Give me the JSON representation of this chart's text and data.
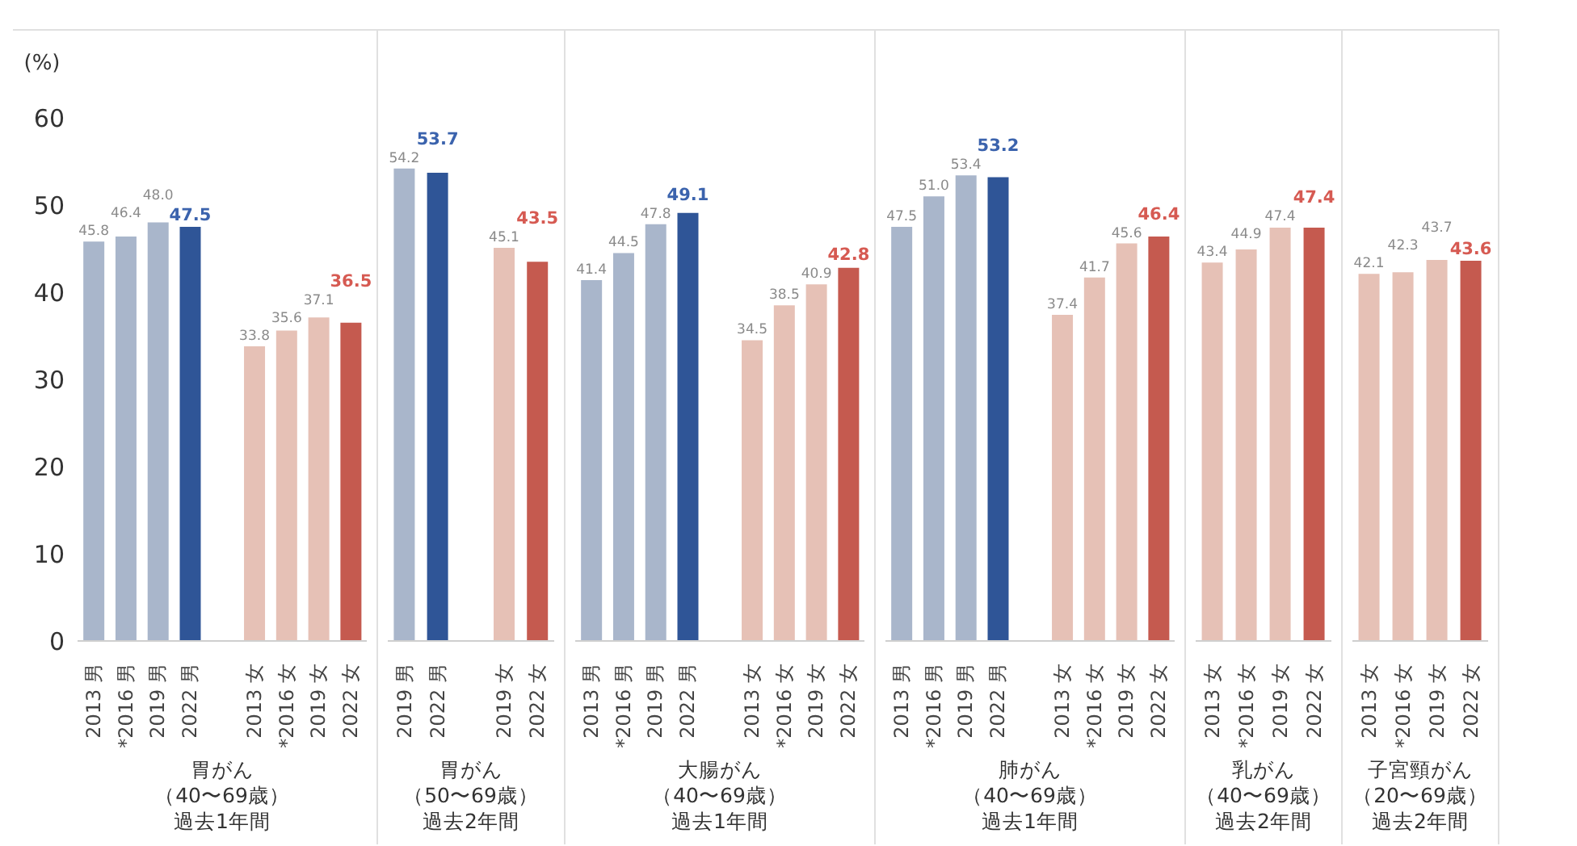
{
  "chart_data": [
    {
      "type": "bar",
      "ylabel": "(%)",
      "xlabel": "胃がん（40〜69歳）過去1年間",
      "categories": [
        "2013 男",
        "*2016 男",
        "2019 男",
        "2022 男",
        null,
        "2013 女",
        "*2016 女",
        "2019 女",
        "2022 女"
      ],
      "values": [
        45.8,
        46.4,
        48.0,
        47.5,
        null,
        33.8,
        35.6,
        37.1,
        36.5
      ],
      "value_labels": [
        "45.8",
        "46.4",
        "48.0",
        "47.5",
        null,
        "33.8",
        "35.6",
        "37.1",
        "36.5"
      ],
      "colors": [
        "#a9b6cb",
        "#a9b6cb",
        "#a9b6cb",
        "#2f5597",
        null,
        "#e6c1b6",
        "#e6c1b6",
        "#e6c1b6",
        "#c55a4f"
      ],
      "ylim": [
        0,
        70
      ],
      "yticks": [
        0,
        10,
        20,
        30,
        40,
        50,
        60
      ],
      "grid": false
    },
    {
      "type": "bar",
      "xlabel": "胃がん（50〜69歳）過去2年間",
      "categories": [
        "2019 男",
        "2022 男",
        null,
        "2019 女",
        "2022 女"
      ],
      "values": [
        54.2,
        53.7,
        null,
        45.1,
        43.5
      ],
      "value_labels": [
        "54.2",
        "53.7",
        null,
        "45.1",
        "43.5"
      ],
      "colors": [
        "#a9b6cb",
        "#2f5597",
        null,
        "#e6c1b6",
        "#c55a4f"
      ],
      "ylim": [
        0,
        70
      ],
      "tick_labels": "x",
      "grid": false
    },
    {
      "type": "bar",
      "xlabel": "大腸がん（40〜69歳）過去1年間",
      "categories": [
        "2013 男",
        "*2016 男",
        "2019 男",
        "2022 男",
        null,
        "2013 女",
        "*2016 女",
        "2019 女",
        "2022 女"
      ],
      "values": [
        41.4,
        44.5,
        47.8,
        49.1,
        null,
        34.5,
        38.5,
        40.9,
        42.8
      ],
      "value_labels": [
        "41.4",
        "44.5",
        "47.8",
        "49.1",
        null,
        "34.5",
        "38.5",
        "40.9",
        "42.8"
      ],
      "colors": [
        "#a9b6cb",
        "#a9b6cb",
        "#a9b6cb",
        "#2f5597",
        null,
        "#e6c1b6",
        "#e6c1b6",
        "#e6c1b6",
        "#c55a4f"
      ],
      "ylim": [
        0,
        70
      ],
      "tick_labels": "x",
      "grid": false
    },
    {
      "type": "bar",
      "xlabel": "肺がん（40〜69歳）過去1年間",
      "categories": [
        "2013 男",
        "*2016 男",
        "2019 男",
        "2022 男",
        null,
        "2013 女",
        "*2016 女",
        "2019 女",
        "2022 女"
      ],
      "values": [
        47.5,
        51.0,
        53.4,
        53.2,
        null,
        37.4,
        41.7,
        45.6,
        46.4
      ],
      "value_labels": [
        "47.5",
        "51.0",
        "53.4",
        "53.2",
        null,
        "37.4",
        "41.7",
        "45.6",
        "46.4"
      ],
      "colors": [
        "#a9b6cb",
        "#a9b6cb",
        "#a9b6cb",
        "#2f5597",
        null,
        "#e6c1b6",
        "#e6c1b6",
        "#e6c1b6",
        "#c55a4f"
      ],
      "ylim": [
        0,
        70
      ],
      "tick_labels": "x",
      "grid": false
    },
    {
      "type": "bar",
      "xlabel": "乳がん（40〜69歳）過去2年間",
      "categories": [
        "2013 女",
        "*2016 女",
        "2019 女",
        "2022 女"
      ],
      "values": [
        43.4,
        44.9,
        47.4,
        47.4
      ],
      "value_labels": [
        "43.4",
        "44.9",
        "47.4",
        "47.4"
      ],
      "colors": [
        "#e6c1b6",
        "#e6c1b6",
        "#e6c1b6",
        "#c55a4f"
      ],
      "ylim": [
        0,
        70
      ],
      "tick_labels": "x",
      "grid": false
    },
    {
      "type": "bar",
      "xlabel": "子宮頸がん（20〜69歳）過去2年間",
      "categories": [
        "2013 女",
        "*2016 女",
        "2019 女",
        "2022 女"
      ],
      "values": [
        42.1,
        42.3,
        43.7,
        43.6
      ],
      "value_labels": [
        "42.1",
        "42.3",
        "43.7",
        "43.6"
      ],
      "colors": [
        "#e6c1b6",
        "#e6c1b6",
        "#e6c1b6",
        "#c55a4f"
      ],
      "ylim": [
        0,
        70
      ],
      "tick_labels": "x",
      "grid": false
    }
  ]
}
